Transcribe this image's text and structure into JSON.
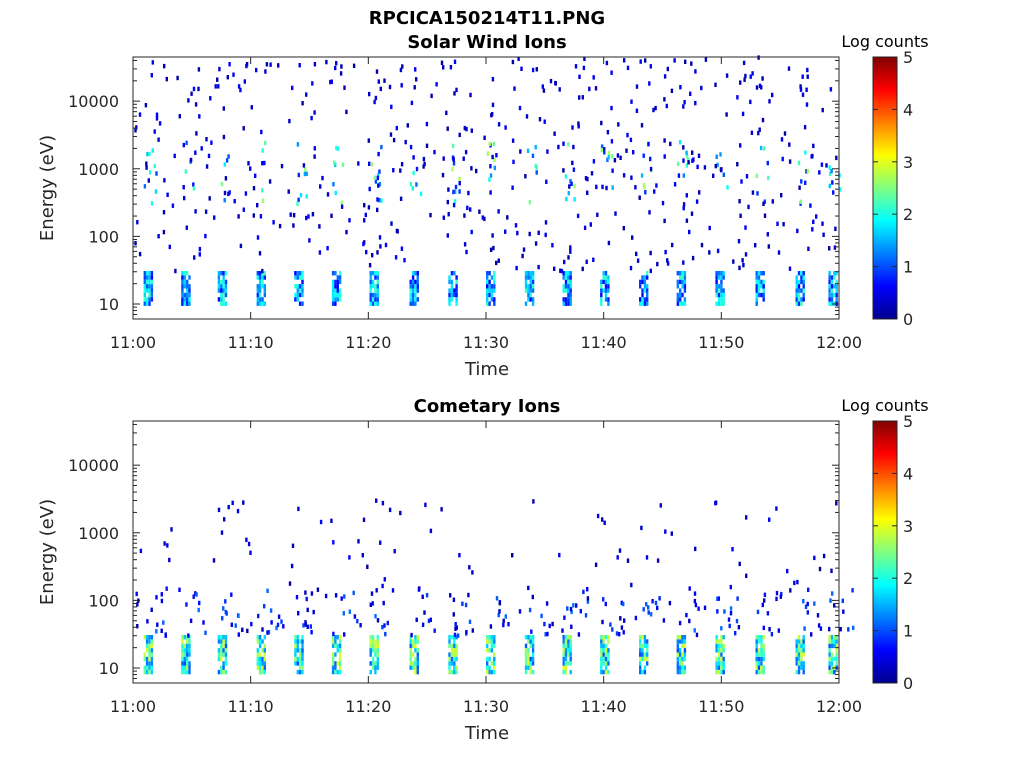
{
  "figure_title": "RPCICA150214T11.PNG",
  "chart_data": [
    {
      "type": "heatmap",
      "title": "Solar Wind Ions",
      "xlabel": "Time",
      "ylabel": "Energy (eV)",
      "x_ticks": [
        "11:00",
        "11:10",
        "11:20",
        "11:30",
        "11:40",
        "11:50",
        "12:00"
      ],
      "y_ticks": [
        "10",
        "100",
        "1000",
        "10000"
      ],
      "y_scale": "log",
      "ylim": [
        6,
        45000
      ],
      "colorbar": {
        "label": "Log counts",
        "ticks": [
          "0",
          "1",
          "2",
          "3",
          "4",
          "5"
        ],
        "range": [
          0,
          5
        ],
        "colormap": "jet"
      },
      "sweep_times_min": [
        1.2,
        4.4,
        7.5,
        10.8,
        14.0,
        17.2,
        20.4,
        23.8,
        27.1,
        30.3,
        33.6,
        36.8,
        40.0,
        43.3,
        46.5,
        49.8,
        53.2,
        56.6,
        59.4
      ],
      "features": [
        {
          "energy_range_eV": [
            10,
            30
          ],
          "level_range": [
            0.6,
            2.2
          ],
          "note": "dense low-energy band in every sweep"
        },
        {
          "energy_range_eV": [
            300,
            2500
          ],
          "level_range": [
            0.5,
            2.8
          ],
          "note": "solar wind ion peaks"
        },
        {
          "energy_range_eV": [
            30,
            45000
          ],
          "level_range": [
            0.2,
            0.6
          ],
          "note": "scattered background counts"
        }
      ]
    },
    {
      "type": "heatmap",
      "title": "Cometary Ions",
      "xlabel": "Time",
      "ylabel": "Energy (eV)",
      "x_ticks": [
        "11:00",
        "11:10",
        "11:20",
        "11:30",
        "11:40",
        "11:50",
        "12:00"
      ],
      "y_ticks": [
        "10",
        "100",
        "1000",
        "10000"
      ],
      "y_scale": "log",
      "ylim": [
        6,
        45000
      ],
      "colorbar": {
        "label": "Log counts",
        "ticks": [
          "0",
          "1",
          "2",
          "3",
          "4",
          "5"
        ],
        "range": [
          0,
          5
        ],
        "colormap": "jet"
      },
      "sweep_times_min": [
        1.2,
        4.4,
        7.5,
        10.8,
        14.0,
        17.2,
        20.4,
        23.8,
        27.1,
        30.3,
        33.6,
        36.8,
        40.0,
        43.3,
        46.5,
        49.8,
        53.2,
        56.6,
        59.4
      ],
      "features": [
        {
          "energy_range_eV": [
            8,
            30
          ],
          "level_range": [
            1.0,
            3.0
          ],
          "note": "strong low-energy cometary ion band"
        },
        {
          "energy_range_eV": [
            30,
            150
          ],
          "level_range": [
            0.3,
            1.2
          ],
          "note": "tails above the band"
        },
        {
          "energy_range_eV": [
            300,
            2500
          ],
          "level_range": [
            0.4,
            2.2
          ],
          "note": "sparse higher-energy ions"
        }
      ]
    }
  ]
}
